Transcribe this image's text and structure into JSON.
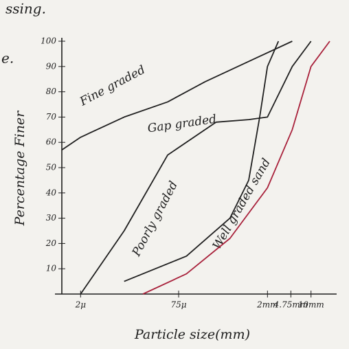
{
  "chart_data": {
    "type": "line",
    "annotations": [
      "ssing.",
      "e."
    ],
    "x_label": "Particle size(mm)",
    "y_label": "Percentage Finer",
    "log_x": true,
    "xlim": [
      0.001,
      20
    ],
    "xticks": [
      {
        "value": 0.002,
        "label": "2μ"
      },
      {
        "value": 0.075,
        "label": "75μ"
      },
      {
        "value": 2,
        "label": "2mm"
      },
      {
        "value": 4.75,
        "label": "4.75mm"
      },
      {
        "value": 10,
        "label": "10mm"
      }
    ],
    "ylim": [
      0,
      100
    ],
    "yticks": [
      10,
      20,
      30,
      40,
      50,
      60,
      70,
      80,
      90,
      100
    ],
    "grid": false,
    "series": [
      {
        "name": "Fine graded",
        "color": "#1f1f1f",
        "x": [
          0.001,
          0.002,
          0.01,
          0.05,
          0.2,
          1,
          5
        ],
        "values": [
          57,
          62,
          70,
          76,
          84,
          92,
          100
        ]
      },
      {
        "name": "Gap graded",
        "color": "#1f1f1f",
        "x": [
          0.002,
          0.01,
          0.05,
          0.3,
          1,
          2,
          5,
          10
        ],
        "values": [
          0,
          25,
          55,
          68,
          69,
          70,
          90,
          100
        ]
      },
      {
        "name": "Poorly graded",
        "color": "#1f1f1f",
        "x": [
          0.01,
          0.1,
          0.5,
          1,
          1.5,
          2,
          3
        ],
        "values": [
          5,
          15,
          30,
          45,
          70,
          90,
          100
        ]
      },
      {
        "name": "Well graded sand",
        "color": "#a8203a",
        "x": [
          0.02,
          0.1,
          0.5,
          2,
          5,
          10,
          20
        ],
        "values": [
          0,
          8,
          22,
          42,
          65,
          90,
          100
        ]
      }
    ]
  }
}
